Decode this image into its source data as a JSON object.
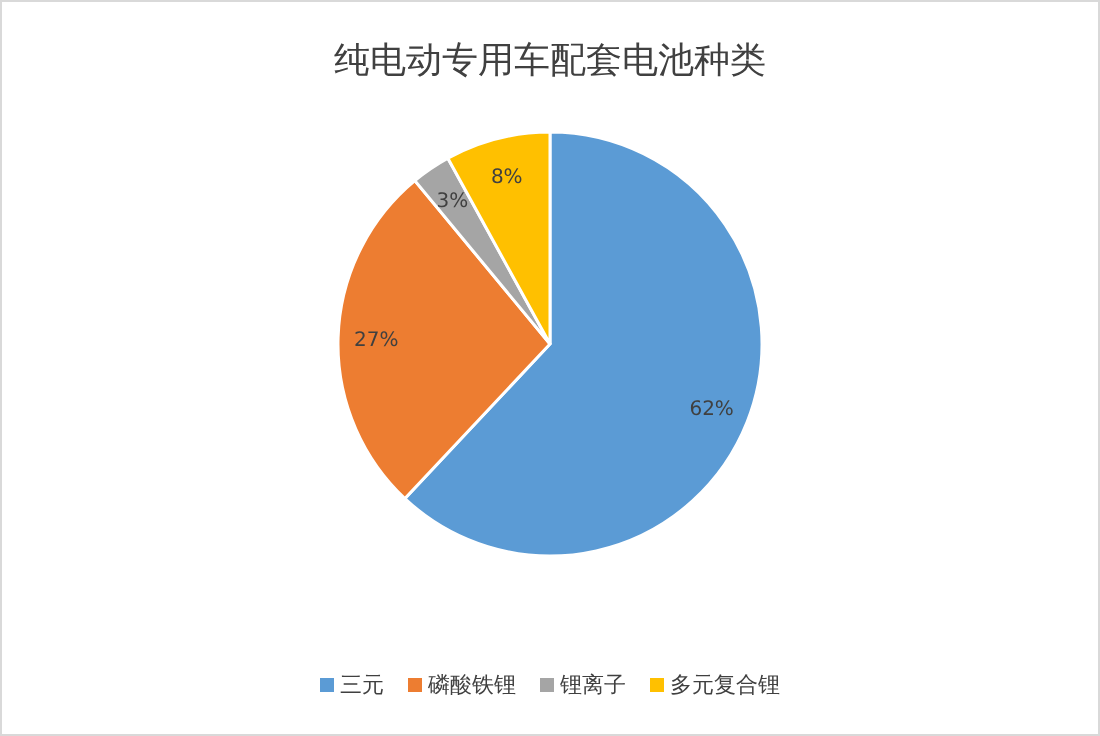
{
  "chart_data": {
    "type": "pie",
    "title": "纯电动专用车配套电池种类",
    "categories": [
      "三元",
      "磷酸铁锂",
      "锂离子",
      "多元复合锂"
    ],
    "values": [
      62,
      27,
      3,
      8
    ],
    "colors": [
      "#5b9bd5",
      "#ed7d31",
      "#a5a5a5",
      "#ffc000"
    ],
    "value_labels": [
      "62%",
      "27%",
      "3%",
      "8%"
    ],
    "legend": "bottom"
  }
}
